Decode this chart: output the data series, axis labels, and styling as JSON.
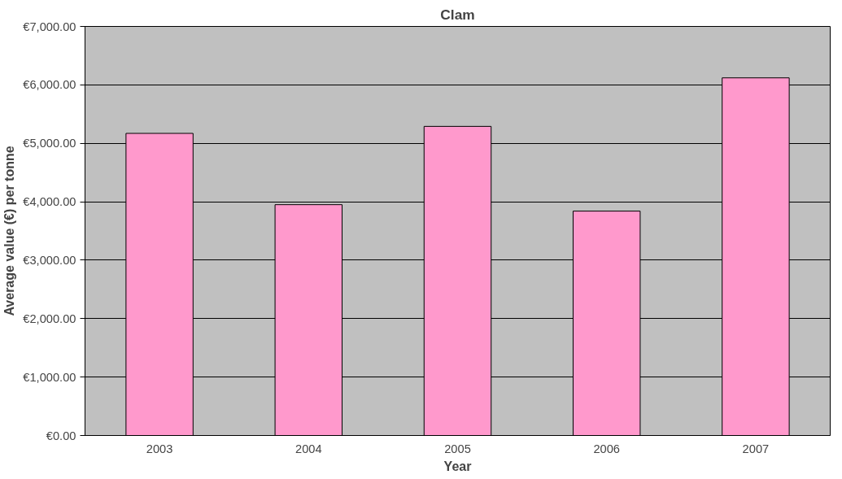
{
  "chart_data": {
    "type": "bar",
    "title": "Clam",
    "xlabel": "Year",
    "ylabel": "Average value (€) per tonne",
    "categories": [
      "2003",
      "2004",
      "2005",
      "2006",
      "2007"
    ],
    "values": [
      5170,
      3950,
      5290,
      3840,
      6120
    ],
    "color": "#ff99cc",
    "ylim": [
      0,
      7000
    ],
    "yticks": [
      {
        "value": 0,
        "label": "€0.00"
      },
      {
        "value": 1000,
        "label": "€1,000.00"
      },
      {
        "value": 2000,
        "label": "€2,000.00"
      },
      {
        "value": 3000,
        "label": "€3,000.00"
      },
      {
        "value": 4000,
        "label": "€4,000.00"
      },
      {
        "value": 5000,
        "label": "€5,000.00"
      },
      {
        "value": 6000,
        "label": "€6,000.00"
      },
      {
        "value": 7000,
        "label": "€7,000.00"
      }
    ],
    "grid": "y"
  }
}
